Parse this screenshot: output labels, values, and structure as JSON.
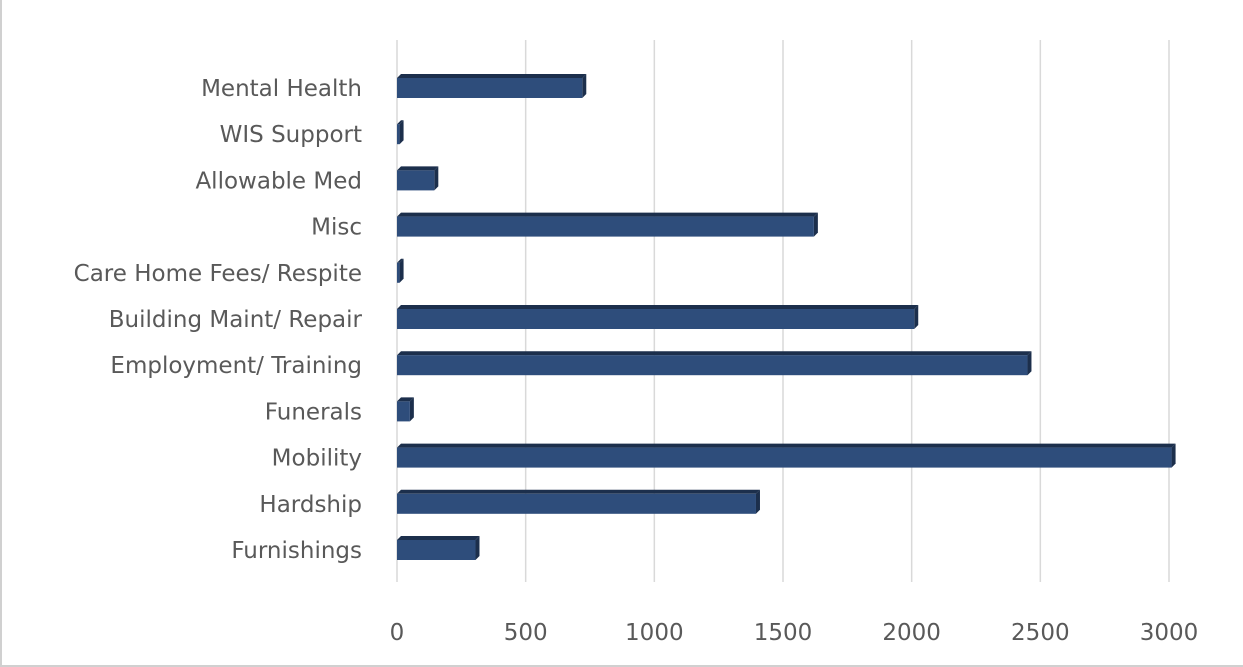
{
  "chart_data": {
    "type": "bar",
    "orientation": "horizontal",
    "title": "",
    "xlabel": "",
    "ylabel": "",
    "categories": [
      "Mental Health",
      "WIS Support",
      "Allowable Med",
      "Misc",
      "Care Home Fees/ Respite",
      "Building Maint/ Repair",
      "Employment/ Training",
      "Funerals",
      "Mobility",
      "Hardship",
      "Furnishings"
    ],
    "values": [
      720,
      10,
      145,
      1620,
      10,
      2010,
      2450,
      50,
      3010,
      1395,
      305
    ],
    "xlim": [
      0,
      3000
    ],
    "xticks": [
      "0",
      "500",
      "1000",
      "1500",
      "2000",
      "2500",
      "3000"
    ],
    "grid": "vertical",
    "legend": "none",
    "bar_color": "#2e4d7b",
    "bar_shade_color": "#1c2f4c"
  }
}
